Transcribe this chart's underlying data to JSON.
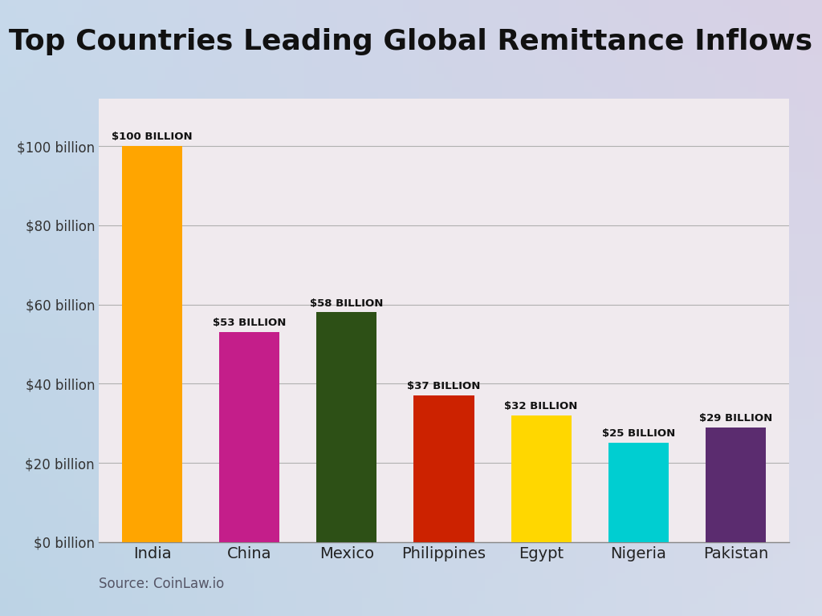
{
  "title": "Top Countries Leading Global Remittance Inflows",
  "categories": [
    "India",
    "China",
    "Mexico",
    "Philippines",
    "Egypt",
    "Nigeria",
    "Pakistan"
  ],
  "values": [
    100,
    53,
    58,
    37,
    32,
    25,
    29
  ],
  "bar_colors": [
    "#FFA500",
    "#C41E8A",
    "#2D5016",
    "#CC2200",
    "#FFD700",
    "#00CED1",
    "#5B2C6F"
  ],
  "bar_labels": [
    "$100 billion",
    "$53 billion",
    "$58 billion",
    "$37 billion",
    "$32 billion",
    "$25 billion",
    "$29 billion"
  ],
  "yticks": [
    0,
    20,
    40,
    60,
    80,
    100
  ],
  "ytick_labels": [
    "$0 billion",
    "$20 billion",
    "$40 billion",
    "$60 billion",
    "$80 billion",
    "$100 billion"
  ],
  "ylim": [
    0,
    112
  ],
  "source_text": "Source: CoinLaw.io",
  "title_fontsize": 26,
  "label_fontsize": 9.5,
  "tick_fontsize": 12,
  "source_fontsize": 12,
  "xtick_fontsize": 14,
  "fig_bg_topleft": "#c8d8e8",
  "fig_bg_bottomright": "#ddd0e8",
  "plot_bg_color": "#f5eef0",
  "grid_color": "#b0b0b0",
  "spine_color": "#888888"
}
